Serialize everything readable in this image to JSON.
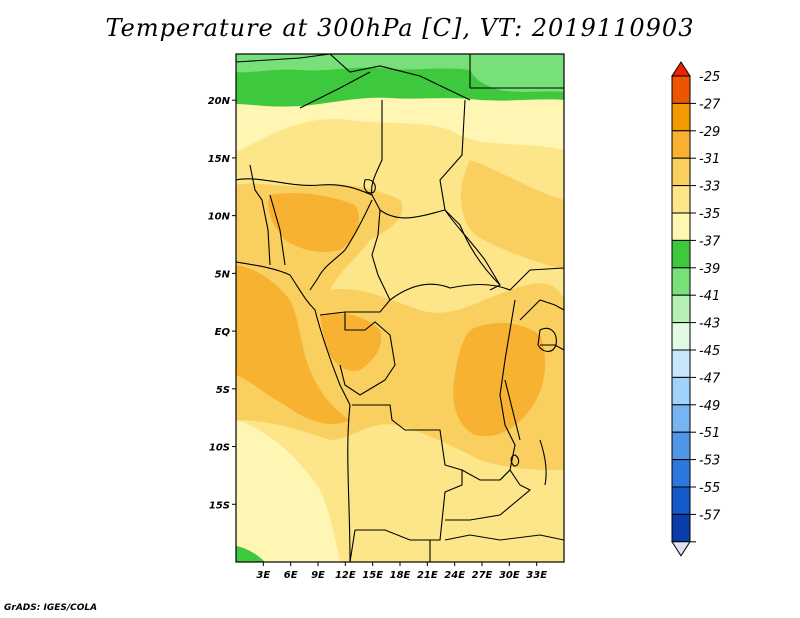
{
  "title": "Temperature at 300hPa [C], VT: 2019110903",
  "credit": "GrADS: IGES/COLA",
  "map": {
    "lon_range": [
      0,
      36
    ],
    "lat_range": [
      -20,
      24
    ],
    "lat_ticks": [
      {
        "value": 20,
        "label": "20N"
      },
      {
        "value": 15,
        "label": "15N"
      },
      {
        "value": 10,
        "label": "10N"
      },
      {
        "value": 5,
        "label": "5N"
      },
      {
        "value": 0,
        "label": "EQ"
      },
      {
        "value": -5,
        "label": "5S"
      },
      {
        "value": -10,
        "label": "10S"
      },
      {
        "value": -15,
        "label": "15S"
      }
    ],
    "lon_ticks": [
      {
        "value": 3,
        "label": "3E"
      },
      {
        "value": 6,
        "label": "6E"
      },
      {
        "value": 9,
        "label": "9E"
      },
      {
        "value": 12,
        "label": "12E"
      },
      {
        "value": 15,
        "label": "15E"
      },
      {
        "value": 18,
        "label": "18E"
      },
      {
        "value": 21,
        "label": "21E"
      },
      {
        "value": 24,
        "label": "24E"
      },
      {
        "value": 27,
        "label": "27E"
      },
      {
        "value": 30,
        "label": "30E"
      },
      {
        "value": 33,
        "label": "33E"
      }
    ]
  },
  "colorbar": {
    "levels": [
      {
        "label": "-25",
        "color": "#ee5500"
      },
      {
        "label": "-27",
        "color": "#f49a00"
      },
      {
        "label": "-29",
        "color": "#f7b232"
      },
      {
        "label": "-31",
        "color": "#f9d060"
      },
      {
        "label": "-33",
        "color": "#fde58a"
      },
      {
        "label": "-35",
        "color": "#fff6b4"
      },
      {
        "label": "-37",
        "color": "#3dc83d"
      },
      {
        "label": "-39",
        "color": "#78e078"
      },
      {
        "label": "-41",
        "color": "#b4f0b4"
      },
      {
        "label": "-43",
        "color": "#e2fae2"
      },
      {
        "label": "-45",
        "color": "#c8e6fa"
      },
      {
        "label": "-47",
        "color": "#a0d2fa"
      },
      {
        "label": "-49",
        "color": "#78b4f0"
      },
      {
        "label": "-51",
        "color": "#5096e6"
      },
      {
        "label": "-53",
        "color": "#2d78dc"
      },
      {
        "label": "-55",
        "color": "#145ac8"
      },
      {
        "label": "-57",
        "color": "#0a3caa"
      }
    ],
    "top_color": "#ee2200",
    "bottom_color": "#e2e2f5",
    "bottom_band_color": "#0a1478"
  }
}
